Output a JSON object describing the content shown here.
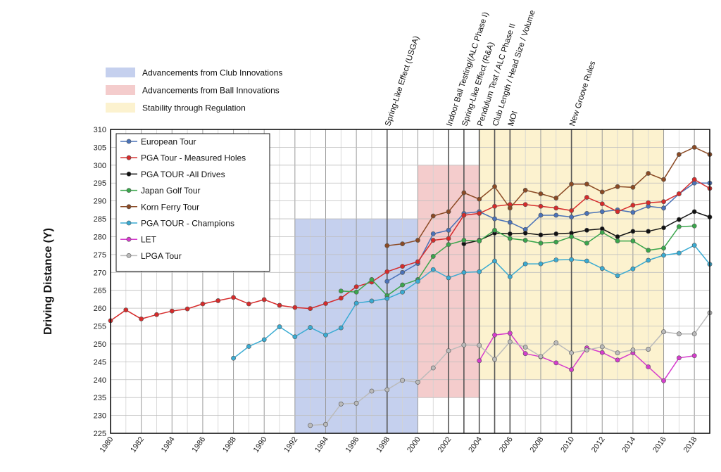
{
  "chart_data": {
    "type": "line",
    "ylabel": "Driving Distance (Y)",
    "xlabel": "",
    "title": "",
    "xlim": [
      1980,
      2019
    ],
    "ylim": [
      225,
      310
    ],
    "x_ticks": [
      "1980",
      "1982",
      "1984",
      "1986",
      "1988",
      "1990",
      "1992",
      "1994",
      "1996",
      "1998",
      "2000",
      "2002",
      "2004",
      "2006",
      "2008",
      "2010",
      "2012",
      "2014",
      "2016",
      "2018"
    ],
    "y_ticks": [
      "225",
      "230",
      "235",
      "240",
      "245",
      "250",
      "255",
      "260",
      "265",
      "270",
      "275",
      "280",
      "285",
      "290",
      "295",
      "300",
      "305",
      "310"
    ],
    "grid": true,
    "legend_position": "top-left",
    "regions": [
      {
        "label": "Advancements from Club Innovations",
        "color": "#c5d0ee",
        "x": [
          1992,
          2000
        ],
        "y": [
          225,
          285
        ]
      },
      {
        "label": "Advancements from Ball Innovations",
        "color": "#f4cccc",
        "x": [
          2000,
          2004
        ],
        "y": [
          235,
          300
        ]
      },
      {
        "label": "Stability through Regulation",
        "color": "#fcf2cf",
        "x": [
          2004,
          2016
        ],
        "y": [
          240,
          310
        ]
      }
    ],
    "annotations": [
      {
        "year": 1998,
        "lines": [
          "Spring-Like Effect (USGA)"
        ]
      },
      {
        "year": 2002,
        "lines": [
          "Indoor Ball Testing/(ALC Phase I)"
        ]
      },
      {
        "year": 2003,
        "lines": [
          "Spring-Like Effect (R&A)"
        ]
      },
      {
        "year": 2004,
        "lines": [
          "Pendulum Test / ALC Phase II"
        ]
      },
      {
        "year": 2005,
        "lines": [
          "Club Length / Head Size / Volume"
        ]
      },
      {
        "year": 2006,
        "lines": [
          "MOI"
        ]
      },
      {
        "year": 2010,
        "lines": [
          "New Groove Rules"
        ]
      }
    ],
    "series": [
      {
        "name": "European Tour",
        "color": "#4a72b8",
        "x": [
          1998,
          1999,
          2000,
          2001,
          2002,
          2003,
          2004,
          2005,
          2006,
          2007,
          2008,
          2009,
          2010,
          2011,
          2012,
          2013,
          2014,
          2015,
          2016,
          2017,
          2018,
          2019
        ],
        "y": [
          267.5,
          270,
          272.5,
          280.8,
          281.8,
          286.5,
          287,
          285,
          284,
          282,
          286,
          286,
          285.5,
          286.5,
          287,
          287.5,
          286.8,
          288.5,
          288,
          292,
          295,
          295
        ]
      },
      {
        "name": "PGA Tour - Measured Holes",
        "color": "#d62b2b",
        "x": [
          1980,
          1981,
          1982,
          1983,
          1984,
          1985,
          1986,
          1987,
          1988,
          1989,
          1990,
          1991,
          1992,
          1993,
          1994,
          1995,
          1996,
          1997,
          1998,
          1999,
          2000,
          2001,
          2002,
          2003,
          2004,
          2005,
          2006,
          2007,
          2008,
          2009,
          2010,
          2011,
          2012,
          2013,
          2014,
          2015,
          2016,
          2017,
          2018,
          2019
        ],
        "y": [
          256.5,
          259.5,
          257,
          258.2,
          259.2,
          259.8,
          261.2,
          262.1,
          263,
          261.2,
          262.4,
          260.8,
          260.2,
          259.9,
          261.3,
          262.8,
          266,
          267.3,
          270.2,
          271.7,
          273,
          279,
          279.5,
          286,
          286.5,
          288.5,
          289,
          289,
          288.5,
          288,
          287.3,
          291,
          289.2,
          287,
          288.8,
          289.5,
          289.8,
          292,
          296,
          293.5
        ]
      },
      {
        "name": "PGA TOUR -All Drives",
        "color": "#111111",
        "x": [
          2003,
          2004,
          2005,
          2006,
          2007,
          2008,
          2009,
          2010,
          2011,
          2012,
          2013,
          2014,
          2015,
          2016,
          2017,
          2018,
          2019
        ],
        "y": [
          278,
          279,
          281,
          280.8,
          281,
          280.5,
          280.8,
          281,
          281.8,
          282.2,
          280,
          281.5,
          281.5,
          282.5,
          284.8,
          287,
          285.5
        ]
      },
      {
        "name": "Japan Golf Tour",
        "color": "#3aa64c",
        "x": [
          1995,
          1996,
          1997,
          1998,
          1999,
          2000,
          2001,
          2002,
          2003,
          2004,
          2005,
          2006,
          2007,
          2008,
          2009,
          2010,
          2011,
          2012,
          2013,
          2014,
          2015,
          2016,
          2017,
          2018
        ],
        "y": [
          264.8,
          264.5,
          268,
          263.5,
          266.5,
          268,
          274.5,
          277.8,
          279,
          278.8,
          281.8,
          279.5,
          279,
          278.2,
          278.5,
          280,
          278.2,
          281.2,
          278.8,
          278.8,
          276.2,
          276.8,
          282.8,
          283
        ]
      },
      {
        "name": "Korn Ferry Tour",
        "color": "#8b4a24",
        "x": [
          1998,
          1999,
          2000,
          2001,
          2002,
          2003,
          2004,
          2005,
          2006,
          2007,
          2008,
          2009,
          2010,
          2011,
          2012,
          2013,
          2014,
          2015,
          2016,
          2017,
          2018,
          2019
        ],
        "y": [
          277.5,
          278,
          279,
          285.8,
          287,
          292.3,
          290.5,
          294,
          288,
          293,
          292,
          290.8,
          294.7,
          294.7,
          292.5,
          294,
          293.8,
          297.7,
          296,
          303,
          305,
          303
        ]
      },
      {
        "name": "PGA TOUR - Champions",
        "color": "#3aabd2",
        "x": [
          1988,
          1989,
          1990,
          1991,
          1992,
          1993,
          1994,
          1995,
          1996,
          1997,
          1998,
          1999,
          2000,
          2001,
          2002,
          2003,
          2004,
          2005,
          2006,
          2007,
          2008,
          2009,
          2010,
          2011,
          2012,
          2013,
          2014,
          2015,
          2016,
          2017,
          2018,
          2019
        ],
        "y": [
          246,
          249.3,
          251.2,
          254.8,
          252,
          254.6,
          252.5,
          254.5,
          261.4,
          262,
          262.7,
          264.5,
          267.5,
          270.8,
          268.5,
          270,
          270.2,
          273.2,
          268.8,
          272.4,
          272.4,
          273.5,
          273.6,
          273.2,
          271.1,
          269.1,
          271,
          273.4,
          274.8,
          275.4,
          277.6,
          272.3
        ]
      },
      {
        "name": "LET",
        "color": "#d63ccd",
        "x": [
          2004,
          2005,
          2006,
          2007,
          2008,
          2009,
          2010,
          2011,
          2012,
          2013,
          2014,
          2015,
          2016,
          2017,
          2018
        ],
        "y": [
          245.3,
          252.5,
          253,
          247.3,
          246.4,
          244.7,
          242.8,
          248.9,
          247.6,
          245.5,
          247.5,
          243.6,
          239.7,
          246.1,
          246.7
        ]
      },
      {
        "name": "LPGA Tour",
        "color": "#bbbbbb",
        "x": [
          1993,
          1994,
          1995,
          1996,
          1997,
          1998,
          1999,
          2000,
          2001,
          2002,
          2003,
          2004,
          2005,
          2006,
          2007,
          2008,
          2009,
          2010,
          2011,
          2012,
          2013,
          2014,
          2015,
          2016,
          2017,
          2018,
          2019
        ],
        "y": [
          227.2,
          227.5,
          233.2,
          233.4,
          236.8,
          237.2,
          239.8,
          239.3,
          243.3,
          248.1,
          249.7,
          249.6,
          245.7,
          250.6,
          249.1,
          246.5,
          250.3,
          247.5,
          248.3,
          249.2,
          247.5,
          248.3,
          248.5,
          253.4,
          252.8,
          252.8,
          258.7
        ]
      }
    ]
  }
}
